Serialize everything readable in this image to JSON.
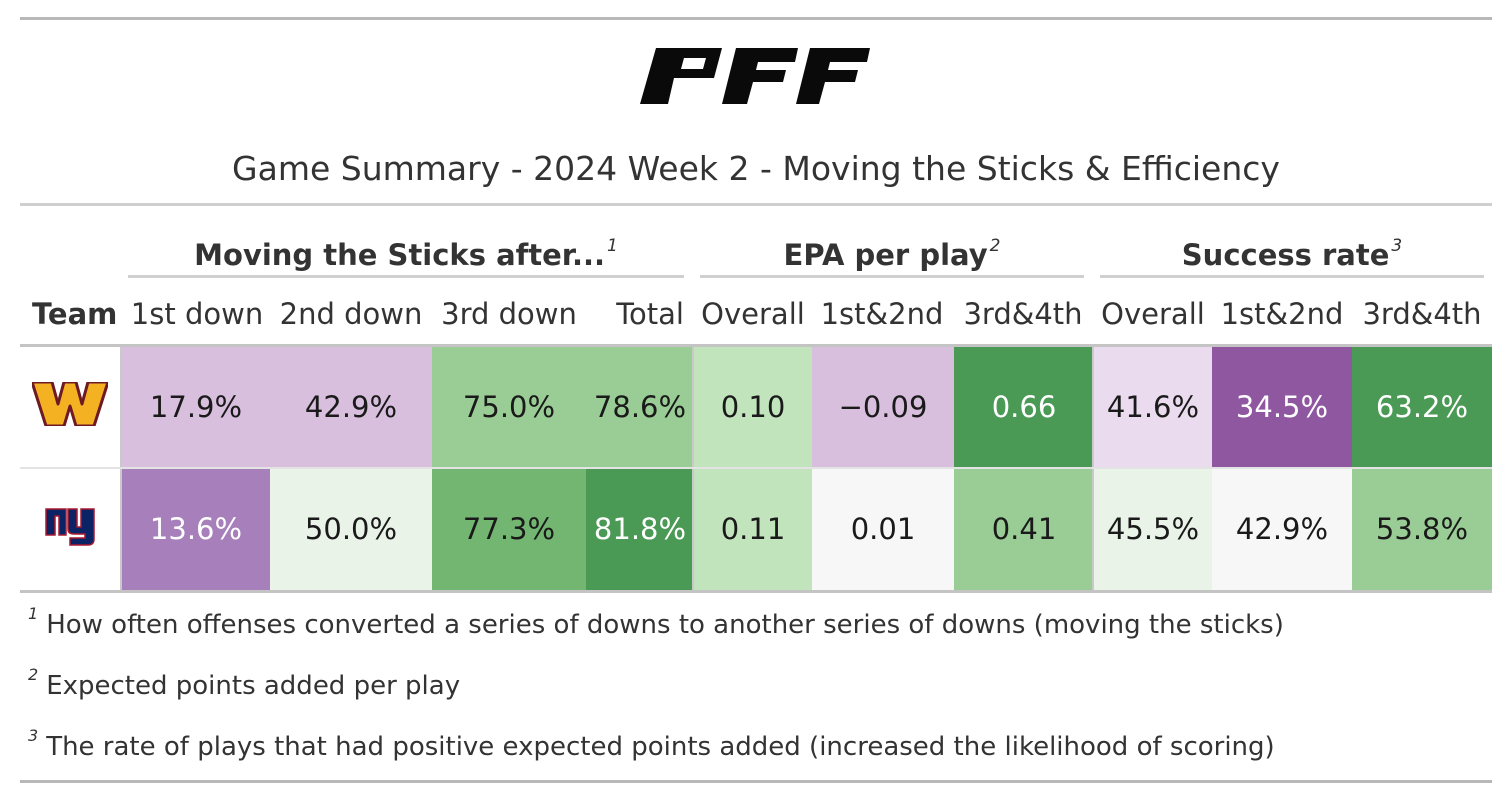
{
  "title": "Game Summary - 2024 Week 2 - Moving the Sticks & Efficiency",
  "logo_icon": "pff-logo",
  "spanners": [
    {
      "label": "Moving the Sticks after...",
      "note": "1"
    },
    {
      "label": "EPA per play",
      "note": "2"
    },
    {
      "label": "Success rate",
      "note": "3"
    }
  ],
  "columns": {
    "team": "Team",
    "list": [
      "1st down",
      "2nd down",
      "3rd down",
      "Total",
      "Overall",
      "1st&2nd",
      "3rd&4th",
      "Overall",
      "1st&2nd",
      "3rd&4th"
    ]
  },
  "rows": [
    {
      "team_icon": "washington-commanders-logo",
      "values": [
        "17.9%",
        "42.9%",
        "75.0%",
        "78.6%",
        "0.10",
        "−0.09",
        "0.66",
        "41.6%",
        "34.5%",
        "63.2%"
      ],
      "colors": [
        "#d8bfde",
        "#d8bfde",
        "#9acd95",
        "#9acd95",
        "#c2e4bd",
        "#d8bfde",
        "#4a9a55",
        "#eadcee",
        "#8e57a0",
        "#4a9a55"
      ],
      "light_text": [
        false,
        false,
        false,
        false,
        false,
        false,
        true,
        false,
        true,
        true
      ]
    },
    {
      "team_icon": "new-york-giants-logo",
      "values": [
        "13.6%",
        "50.0%",
        "77.3%",
        "81.8%",
        "0.11",
        "0.01",
        "0.41",
        "45.5%",
        "42.9%",
        "53.8%"
      ],
      "colors": [
        "#a77fbb",
        "#eaf3e8",
        "#72b671",
        "#4a9a55",
        "#c2e4bd",
        "#f7f7f7",
        "#9acd95",
        "#eaf3e8",
        "#f7f7f7",
        "#9acd95"
      ],
      "light_text": [
        true,
        false,
        false,
        true,
        false,
        false,
        false,
        false,
        false,
        false
      ]
    }
  ],
  "footnotes": [
    {
      "mark": "1",
      "text": "How often offenses converted a series of downs to another series of downs (moving the sticks)"
    },
    {
      "mark": "2",
      "text": "Expected points added per play"
    },
    {
      "mark": "3",
      "text": "The rate of plays that had positive expected points added (increased the likelihood of scoring)"
    }
  ],
  "chart_data": {
    "type": "table",
    "title": "Game Summary - 2024 Week 2 - Moving the Sticks & Efficiency",
    "column_groups": [
      {
        "name": "Moving the Sticks after...",
        "columns": [
          "1st down",
          "2nd down",
          "3rd down",
          "Total"
        ]
      },
      {
        "name": "EPA per play",
        "columns": [
          "Overall",
          "1st&2nd",
          "3rd&4th"
        ]
      },
      {
        "name": "Success rate",
        "columns": [
          "Overall",
          "1st&2nd",
          "3rd&4th"
        ]
      }
    ],
    "rows": [
      {
        "team_icon": "washington-commanders-logo",
        "values": [
          "17.9%",
          "42.9%",
          "75.0%",
          "78.6%",
          "0.10",
          "−0.09",
          "0.66",
          "41.6%",
          "34.5%",
          "63.2%"
        ]
      },
      {
        "team_icon": "new-york-giants-logo",
        "values": [
          "13.6%",
          "50.0%",
          "77.3%",
          "81.8%",
          "0.11",
          "0.01",
          "0.41",
          "45.5%",
          "42.9%",
          "53.8%"
        ]
      }
    ]
  }
}
